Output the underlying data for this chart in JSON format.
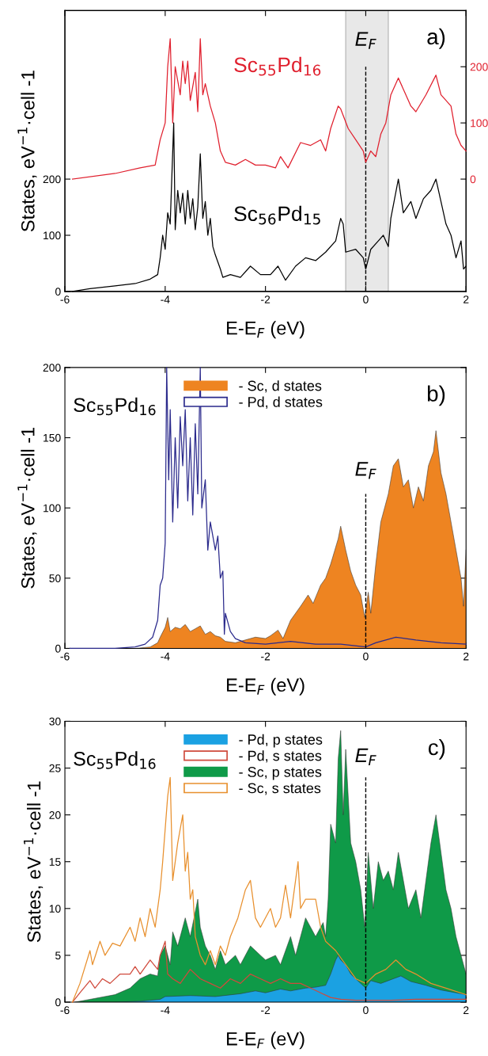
{
  "chart_data": [
    {
      "type": "line",
      "xlabel": "E-E$_{F}$ (eV)",
      "ylabel": "States, eV$^{−1}$·cell -1",
      "xlim": [
        -6,
        2
      ],
      "xticks": [
        -6,
        -4,
        -2,
        0,
        2
      ],
      "ylim": [
        0,
        500
      ],
      "yticks": [
        0,
        100,
        200
      ],
      "y2lim": [
        -200,
        300
      ],
      "y2ticks": [
        0,
        100,
        200
      ],
      "line_style": "solid",
      "legend": false,
      "bands": [
        {
          "axis": "x",
          "from": -0.4,
          "to": 0.45,
          "color": "#e8e8e8"
        }
      ],
      "ref_lines": [
        {
          "axis": "x",
          "value": 0,
          "label": "E$_{F}$",
          "line_style": "dashed",
          "color": "#000000"
        }
      ],
      "annotations": [
        "a)"
      ],
      "series": [
        {
          "name": "Sc$_{55}$Pd$_{16}$",
          "color": "#e0202e",
          "axis": "y2",
          "x": [
            -5.85,
            -5.0,
            -4.5,
            -4.2,
            -4.1,
            -4.0,
            -3.95,
            -3.9,
            -3.85,
            -3.8,
            -3.7,
            -3.65,
            -3.6,
            -3.55,
            -3.5,
            -3.4,
            -3.35,
            -3.3,
            -3.25,
            -3.2,
            -3.1,
            -3.0,
            -2.9,
            -2.8,
            -2.6,
            -2.4,
            -2.2,
            -2.0,
            -1.8,
            -1.7,
            -1.55,
            -1.3,
            -1.1,
            -0.9,
            -0.8,
            -0.7,
            -0.55,
            -0.5,
            -0.35,
            -0.2,
            -0.05,
            0.0,
            0.1,
            0.2,
            0.3,
            0.4,
            0.5,
            0.65,
            0.8,
            0.9,
            1.0,
            1.2,
            1.4,
            1.5,
            1.7,
            1.8,
            1.9,
            2.0
          ],
          "values": [
            0,
            10,
            20,
            25,
            70,
            100,
            200,
            250,
            100,
            200,
            150,
            210,
            170,
            210,
            140,
            190,
            120,
            250,
            150,
            170,
            130,
            100,
            50,
            30,
            25,
            35,
            25,
            25,
            20,
            40,
            20,
            65,
            60,
            70,
            50,
            90,
            130,
            125,
            90,
            70,
            50,
            30,
            50,
            40,
            80,
            100,
            150,
            180,
            150,
            130,
            120,
            150,
            185,
            150,
            130,
            80,
            60,
            50
          ]
        },
        {
          "name": "Sc$_{56}$Pd$_{15}$",
          "color": "#000000",
          "x": [
            -5.85,
            -5.5,
            -5.0,
            -4.6,
            -4.3,
            -4.15,
            -4.1,
            -4.05,
            -4.0,
            -3.95,
            -3.9,
            -3.83,
            -3.8,
            -3.75,
            -3.7,
            -3.65,
            -3.6,
            -3.55,
            -3.5,
            -3.45,
            -3.4,
            -3.35,
            -3.3,
            -3.25,
            -3.2,
            -3.15,
            -3.1,
            -3.05,
            -3.0,
            -2.9,
            -2.85,
            -2.7,
            -2.5,
            -2.3,
            -2.1,
            -1.9,
            -1.75,
            -1.6,
            -1.4,
            -1.2,
            -1.0,
            -0.8,
            -0.6,
            -0.5,
            -0.45,
            -0.4,
            -0.2,
            -0.05,
            0.0,
            0.1,
            0.25,
            0.35,
            0.45,
            0.5,
            0.65,
            0.75,
            0.9,
            1.0,
            1.15,
            1.3,
            1.4,
            1.5,
            1.6,
            1.7,
            1.8,
            1.9,
            1.95,
            2.0
          ],
          "values": [
            0,
            5,
            10,
            14,
            22,
            30,
            60,
            100,
            75,
            140,
            120,
            300,
            110,
            180,
            140,
            175,
            120,
            180,
            130,
            165,
            110,
            150,
            245,
            130,
            160,
            100,
            130,
            80,
            65,
            40,
            25,
            30,
            25,
            45,
            30,
            30,
            45,
            20,
            45,
            60,
            55,
            70,
            90,
            130,
            120,
            70,
            75,
            60,
            40,
            75,
            90,
            100,
            80,
            130,
            200,
            140,
            160,
            130,
            165,
            180,
            200,
            160,
            120,
            100,
            60,
            90,
            40,
            45
          ]
        }
      ]
    },
    {
      "type": "area",
      "xlabel": "E-E$_{F}$ (eV)",
      "ylabel": "States, eV$^{−1}$·cell -1",
      "xlim": [
        -6,
        2
      ],
      "xticks": [
        -6,
        -4,
        -2,
        0,
        2
      ],
      "ylim": [
        0,
        200
      ],
      "yticks": [
        0,
        50,
        100,
        150,
        200
      ],
      "legend": "top",
      "line_style": "solid",
      "ref_lines": [
        {
          "axis": "x",
          "value": 0,
          "label": "E$_{F}$",
          "line_style": "dashed",
          "color": "#000000"
        }
      ],
      "annotations": [
        "Sc$_{55}$Pd$_{16}$",
        "b)"
      ],
      "series": [
        {
          "name": "- Sc, d states",
          "color": "#ee8421",
          "x": [
            -6,
            -4.6,
            -4.3,
            -4.15,
            -4.1,
            -4.0,
            -3.95,
            -3.9,
            -3.8,
            -3.7,
            -3.6,
            -3.5,
            -3.4,
            -3.3,
            -3.2,
            -3.1,
            -3.0,
            -2.9,
            -2.8,
            -2.6,
            -2.4,
            -2.2,
            -2.0,
            -1.9,
            -1.75,
            -1.65,
            -1.5,
            -1.3,
            -1.15,
            -1.05,
            -0.9,
            -0.8,
            -0.7,
            -0.55,
            -0.5,
            -0.4,
            -0.3,
            -0.2,
            -0.1,
            -0.02,
            0.05,
            0.1,
            0.2,
            0.3,
            0.45,
            0.55,
            0.65,
            0.75,
            0.85,
            0.95,
            1.05,
            1.15,
            1.25,
            1.35,
            1.4,
            1.5,
            1.6,
            1.7,
            1.8,
            1.9,
            1.95,
            2.0
          ],
          "values": [
            0,
            0,
            1,
            4,
            8,
            15,
            22,
            12,
            15,
            14,
            17,
            12,
            14,
            16,
            10,
            12,
            9,
            8,
            5,
            4,
            6,
            8,
            7,
            9,
            13,
            7,
            20,
            30,
            38,
            32,
            45,
            50,
            60,
            78,
            87,
            70,
            55,
            45,
            38,
            22,
            40,
            25,
            60,
            90,
            110,
            130,
            135,
            115,
            120,
            100,
            115,
            105,
            130,
            140,
            155,
            125,
            110,
            90,
            70,
            50,
            30,
            70
          ]
        },
        {
          "name": "- Pd, d states",
          "type": "line",
          "color": "#2b2a8c",
          "x": [
            -5.9,
            -5.0,
            -4.6,
            -4.4,
            -4.25,
            -4.15,
            -4.1,
            -4.05,
            -4.0,
            -3.97,
            -3.93,
            -3.9,
            -3.85,
            -3.8,
            -3.75,
            -3.7,
            -3.65,
            -3.6,
            -3.55,
            -3.5,
            -3.45,
            -3.4,
            -3.35,
            -3.3,
            -3.27,
            -3.2,
            -3.15,
            -3.1,
            -3.0,
            -2.95,
            -2.9,
            -2.85,
            -2.82,
            -2.8,
            -2.7,
            -2.6,
            -2.4,
            -2.0,
            -1.5,
            -1.0,
            -0.5,
            0.0,
            0.2,
            0.6,
            1.0,
            1.5,
            2.0
          ],
          "values": [
            0,
            0,
            1,
            3,
            8,
            20,
            45,
            50,
            75,
            200,
            120,
            170,
            90,
            150,
            100,
            165,
            130,
            170,
            105,
            150,
            95,
            160,
            110,
            200,
            100,
            120,
            70,
            90,
            70,
            80,
            50,
            55,
            10,
            25,
            12,
            7,
            4,
            3,
            5,
            3,
            3,
            1,
            4,
            8,
            6,
            4,
            3
          ]
        }
      ]
    },
    {
      "type": "area",
      "xlabel": "E-E$_{F}$ (eV)",
      "ylabel": "States, eV$^{−1}$·cell -1",
      "xlim": [
        -6,
        2
      ],
      "xticks": [
        -6,
        -4,
        -2,
        0,
        2
      ],
      "ylim": [
        0,
        30
      ],
      "yticks": [
        0,
        5,
        10,
        15,
        20,
        25,
        30
      ],
      "legend": "top",
      "line_style": "solid",
      "ref_lines": [
        {
          "axis": "x",
          "value": 0,
          "label": "E$_{F}$",
          "line_style": "dashed",
          "color": "#000000"
        }
      ],
      "annotations": [
        "Sc$_{55}$Pd$_{16}$",
        "c)"
      ],
      "series": [
        {
          "name": "- Pd, p states",
          "color": "#1ba1e2",
          "x": [
            -5.8,
            -5.0,
            -4.5,
            -4.1,
            -4.0,
            -3.5,
            -3.0,
            -2.5,
            -2.2,
            -2.0,
            -1.7,
            -1.5,
            -1.2,
            -1.0,
            -0.8,
            -0.7,
            -0.6,
            -0.55,
            -0.5,
            -0.4,
            -0.3,
            -0.2,
            -0.1,
            0.0,
            0.1,
            0.3,
            0.5,
            0.7,
            0.9,
            1.2,
            1.5,
            1.8,
            2.0
          ],
          "values": [
            0,
            0,
            0.1,
            0.3,
            0.6,
            0.7,
            0.6,
            0.9,
            1.2,
            1.0,
            1.4,
            1.2,
            1.5,
            1.6,
            1.8,
            3,
            4.5,
            5,
            4.5,
            4,
            3,
            2.5,
            2,
            1.5,
            2.3,
            2,
            2.4,
            2.8,
            2.2,
            1.8,
            1.3,
            1,
            0.8
          ]
        },
        {
          "name": "- Pd, s states",
          "type": "line",
          "color": "#d04a3c",
          "x": [
            -5.85,
            -5.7,
            -5.5,
            -5.4,
            -5.25,
            -5.1,
            -4.9,
            -4.7,
            -4.6,
            -4.5,
            -4.3,
            -4.15,
            -4.1,
            -4.0,
            -3.95,
            -3.85,
            -3.7,
            -3.5,
            -3.3,
            -3.1,
            -2.9,
            -2.7,
            -2.5,
            -2.3,
            -2.1,
            -1.9,
            -1.7,
            -1.5,
            -1.3,
            -1.1,
            -0.9,
            -0.7,
            -0.5,
            -0.2,
            0.5,
            1.0,
            2.0
          ],
          "values": [
            0,
            1,
            2.3,
            1.5,
            2.5,
            2,
            3,
            3,
            3.8,
            3,
            4.5,
            3.5,
            5,
            6.5,
            3,
            2.5,
            2,
            3.5,
            2.5,
            2,
            1.5,
            2.5,
            2,
            3,
            2.5,
            2,
            2.5,
            2,
            2,
            1.5,
            1.0,
            0.5,
            0.3,
            0.2,
            0.2,
            0.3,
            0.3
          ]
        },
        {
          "name": "- Sc, p states",
          "color": "#0f9a48",
          "x": [
            -5.8,
            -5.5,
            -5.0,
            -4.7,
            -4.5,
            -4.3,
            -4.15,
            -4.1,
            -4.0,
            -3.9,
            -3.85,
            -3.75,
            -3.6,
            -3.5,
            -3.35,
            -3.3,
            -3.2,
            -3.1,
            -3.0,
            -2.9,
            -2.8,
            -2.6,
            -2.5,
            -2.3,
            -2.1,
            -2.0,
            -1.8,
            -1.7,
            -1.5,
            -1.4,
            -1.2,
            -1.0,
            -0.85,
            -0.8,
            -0.75,
            -0.7,
            -0.6,
            -0.55,
            -0.5,
            -0.45,
            -0.4,
            -0.3,
            -0.2,
            -0.1,
            -0.02,
            0.05,
            0.15,
            0.25,
            0.35,
            0.45,
            0.55,
            0.65,
            0.75,
            0.85,
            1.0,
            1.1,
            1.2,
            1.3,
            1.4,
            1.5,
            1.6,
            1.7,
            1.8,
            1.9,
            2.0
          ],
          "values": [
            0,
            0.3,
            0.8,
            1.5,
            2.5,
            3,
            2.8,
            5,
            6,
            4,
            7.5,
            6,
            9,
            7,
            11,
            8,
            6,
            5,
            3.5,
            5.5,
            4,
            5,
            4,
            6,
            5,
            4.5,
            5,
            4,
            7,
            5,
            9,
            7,
            8.5,
            7,
            11,
            19,
            17,
            26,
            29,
            20,
            27,
            17,
            15,
            12,
            8,
            16,
            10,
            15,
            13,
            14,
            12,
            16,
            13,
            10,
            12,
            9,
            13,
            17,
            20,
            16,
            12,
            10,
            7,
            5,
            3
          ]
        },
        {
          "name": "- Sc, s states",
          "type": "line",
          "color": "#e8902e",
          "x": [
            -5.85,
            -5.7,
            -5.5,
            -5.45,
            -5.3,
            -5.2,
            -5.05,
            -4.9,
            -4.7,
            -4.6,
            -4.5,
            -4.4,
            -4.3,
            -4.2,
            -4.1,
            -4.05,
            -3.95,
            -3.9,
            -3.85,
            -3.75,
            -3.65,
            -3.6,
            -3.55,
            -3.5,
            -3.45,
            -3.4,
            -3.3,
            -3.2,
            -3.1,
            -3.0,
            -2.9,
            -2.8,
            -2.7,
            -2.55,
            -2.4,
            -2.3,
            -2.2,
            -2.1,
            -1.9,
            -1.8,
            -1.7,
            -1.6,
            -1.5,
            -1.35,
            -1.3,
            -1.2,
            -1.0,
            -0.9,
            -0.8,
            -0.6,
            -0.4,
            -0.2,
            0.0,
            0.2,
            0.4,
            0.6,
            0.8,
            1.0,
            1.3,
            1.6,
            2.0
          ],
          "values": [
            0,
            2,
            5.5,
            4,
            6.5,
            5,
            6.3,
            6,
            8,
            6.5,
            9,
            7,
            10,
            8,
            12,
            15,
            22,
            24,
            13,
            17,
            20,
            14,
            16,
            11,
            12,
            7,
            5,
            4,
            5.5,
            4,
            6,
            5,
            7,
            9,
            12,
            13,
            9,
            8,
            10,
            8,
            9,
            12.5,
            9,
            15,
            10,
            11,
            11,
            8,
            6.5,
            5.5,
            4,
            2.5,
            2,
            3,
            3.5,
            4.5,
            3.5,
            3,
            2,
            1.5,
            0.8
          ]
        }
      ]
    }
  ]
}
